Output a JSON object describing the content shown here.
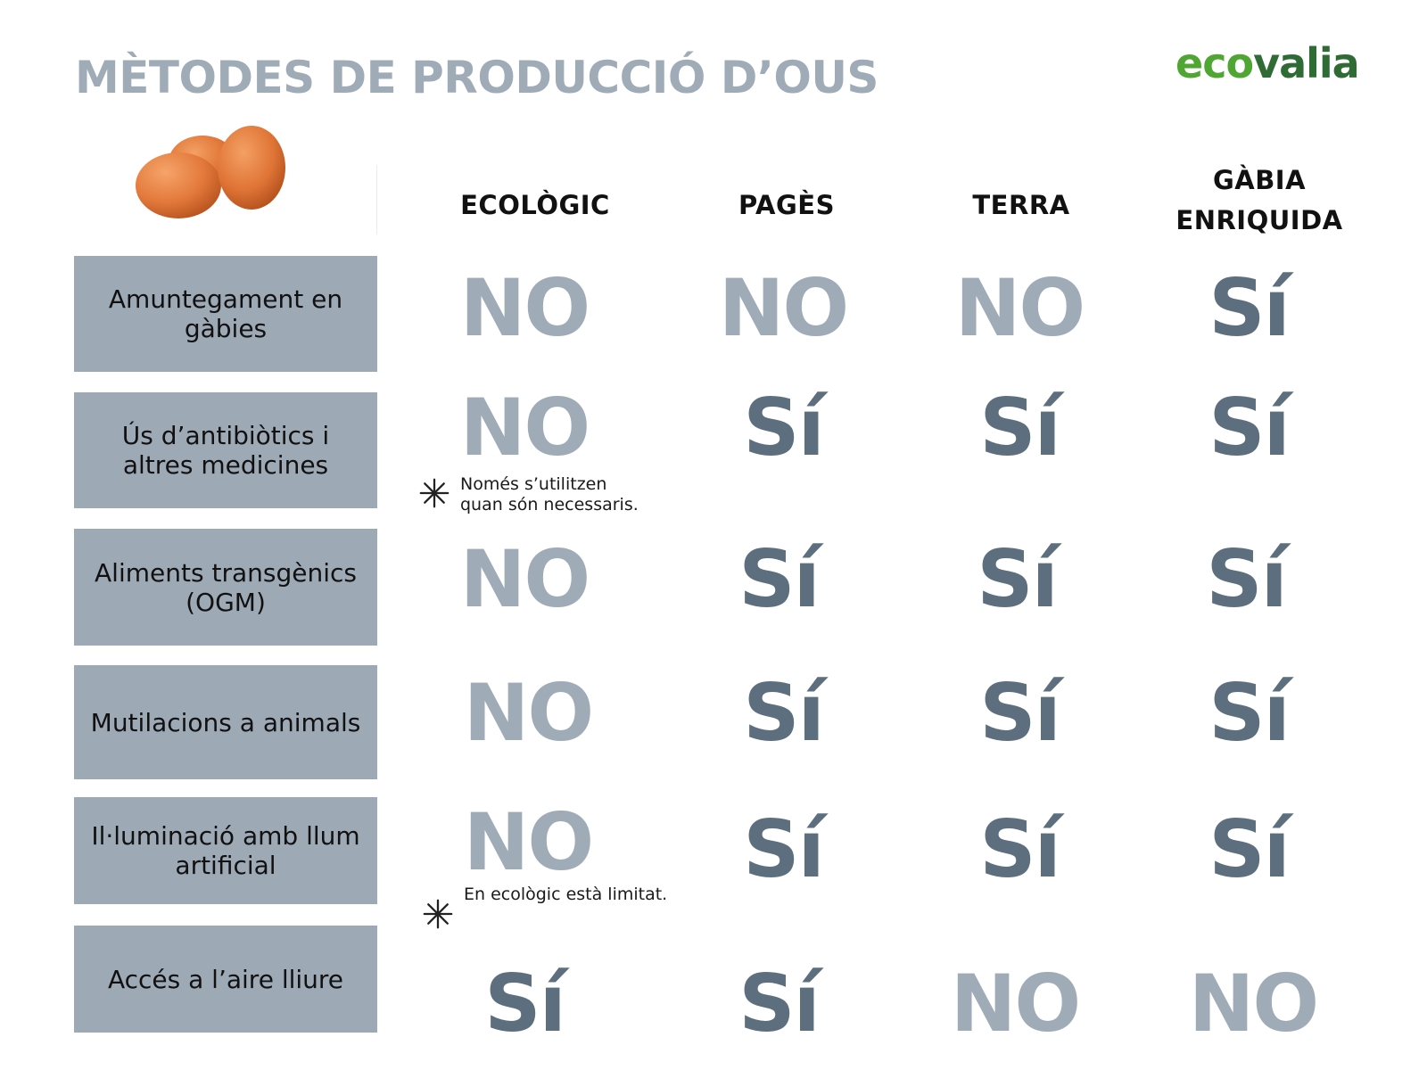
{
  "title": "MÈTODES DE PRODUCCIÓ D’OUS",
  "brand": {
    "part1": "eco",
    "part2": "valia"
  },
  "icons": {
    "eggs": "eggs-icon",
    "note": "asterisk-icon"
  },
  "colors": {
    "no": "#a0abb8",
    "si": "#5d6f7e",
    "label_bg": "#9ea9b6",
    "brand_light": "#4fa632",
    "brand_dark": "#2f6b34"
  },
  "columns": [
    {
      "line1": "ECOLÒGIC",
      "line2": ""
    },
    {
      "line1": "PAGÈS",
      "line2": ""
    },
    {
      "line1": "TERRA",
      "line2": ""
    },
    {
      "line1": "GÀBIA",
      "line2": "ENRIQUIDA"
    }
  ],
  "rows": [
    {
      "label": "Amuntegament en gàbies",
      "values": [
        "NO",
        "NO",
        "NO",
        "Sí"
      ]
    },
    {
      "label": "Ús d’antibiòtics i altres medicines",
      "values": [
        "NO",
        "Sí",
        "Sí",
        "Sí"
      ]
    },
    {
      "label": "Aliments transgènics (OGM)",
      "values": [
        "NO",
        "Sí",
        "Sí",
        "Sí"
      ]
    },
    {
      "label": "Mutilacions a animals",
      "values": [
        "NO",
        "Sí",
        "Sí",
        "Sí"
      ]
    },
    {
      "label": "Il·luminació amb llum artificial",
      "values": [
        "NO",
        "Sí",
        "Sí",
        "Sí"
      ]
    },
    {
      "label": "Accés a l’aire lliure",
      "values": [
        "Sí",
        "Sí",
        "NO",
        "NO"
      ]
    }
  ],
  "notes": [
    {
      "line1": "Només s’utilitzen",
      "line2": "quan són necessaris."
    },
    {
      "line1": "En ecològic està limitat.",
      "line2": ""
    }
  ]
}
